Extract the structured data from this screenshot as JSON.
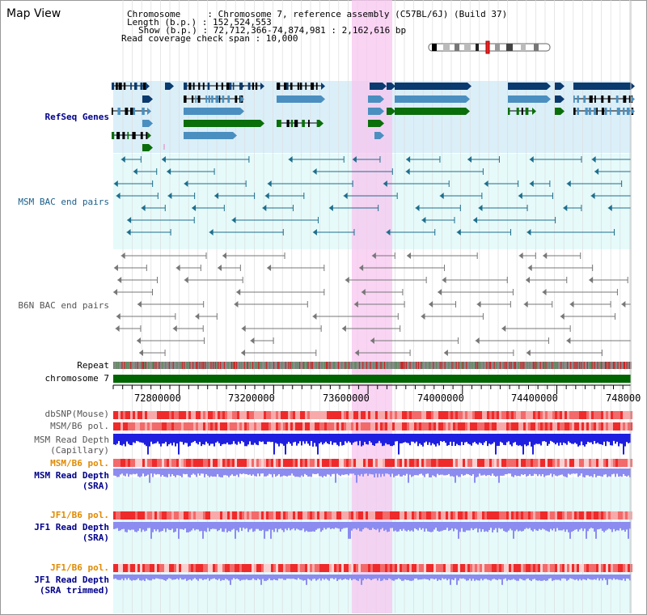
{
  "app": {
    "title": "Map View"
  },
  "info": {
    "chromosome_line": "Chromosome     : Chromosome 7, reference assembly (C57BL/6J) (Build 37)",
    "length_line": "Length (b.p.) : 152,524,553",
    "show_line": "Show (b.p.) : 72,712,366-74,874,981 : 2,162,616 bp",
    "coverage_line": "Read coverage check span : 10,000"
  },
  "tracks": {
    "refseq": "RefSeq Genes",
    "msm_bac": "MSM BAC end pairs",
    "b6n_bac": "B6N BAC end pairs",
    "repeat": "Repeat",
    "chromosome": "chromosome 7",
    "dbsnp": "dbSNP(Mouse)",
    "msm_b6_pol_1": "MSM/B6 pol.",
    "msm_read_depth_cap_1": "MSM Read Depth",
    "msm_read_depth_cap_2": "(Capillary)",
    "msm_b6_pol_2": "MSM/B6 pol.",
    "msm_read_depth_sra_1": "MSM Read Depth",
    "msm_read_depth_sra_2": "(SRA)",
    "jf1_b6_pol_1": "JF1/B6 pol.",
    "jf1_read_depth_sra_1": "JF1 Read Depth",
    "jf1_read_depth_sra_2": "(SRA)",
    "jf1_b6_pol_2": "JF1/B6 pol.",
    "jf1_read_depth_trim_1": "JF1 Read Depth",
    "jf1_read_depth_trim_2": "(SRA trimmed)"
  },
  "axis": {
    "ticks": [
      "72800000",
      "73200000",
      "73600000",
      "74000000",
      "74400000",
      "748000"
    ]
  },
  "colors": {
    "refseq_bg": "#dbeff9",
    "bac_bg": "#e6fafa",
    "highlight": "#f7c6ef",
    "chromosome": "#006400",
    "gene_dark": "#0a3a6e",
    "gene_mid": "#4a8fc0",
    "gene_green": "#0a6e0a",
    "depth_blue": "#1f1fe0",
    "depth_light": "#8c8cf0"
  }
}
